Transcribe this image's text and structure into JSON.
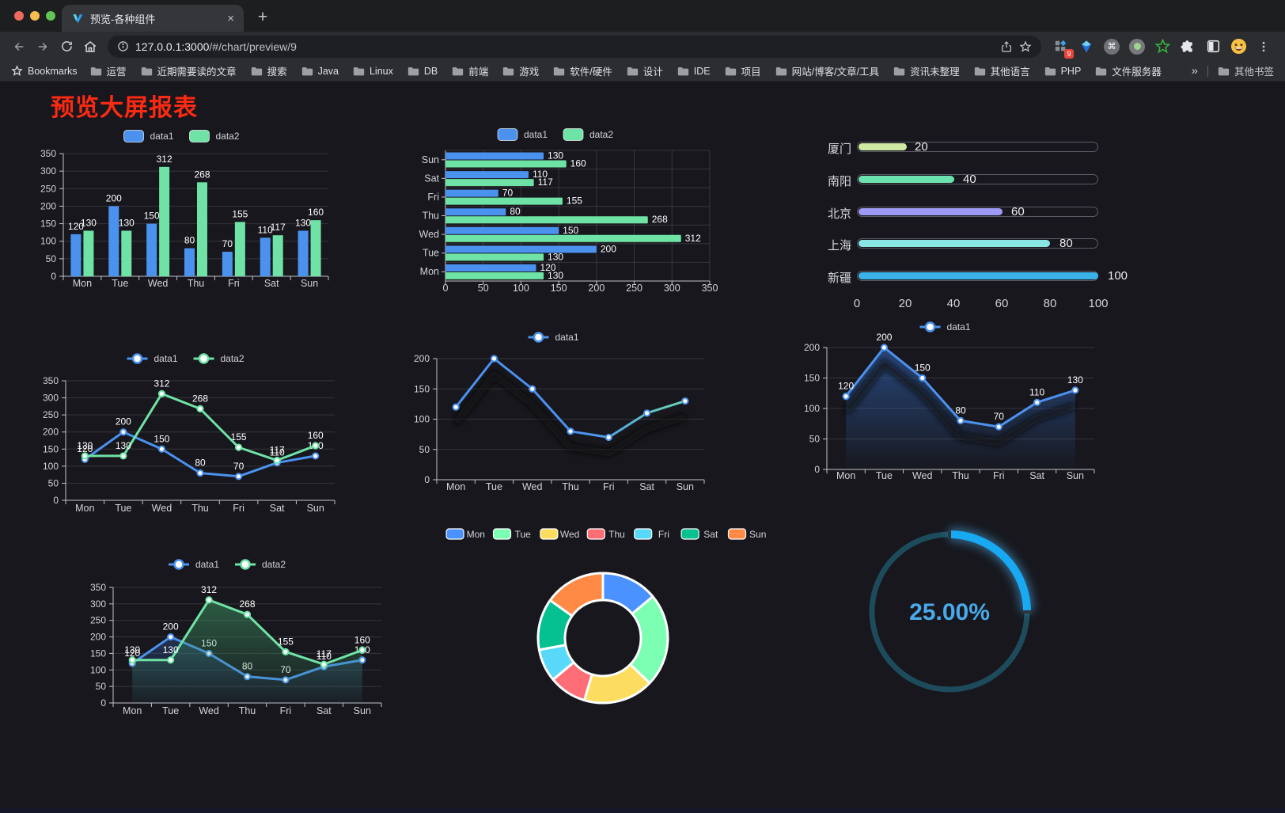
{
  "browser": {
    "tab_title": "预览-各种组件",
    "tab_close": "×",
    "new_tab_button": "+",
    "url_host": "127.0.0.1:3000",
    "url_path": "/#/chart/preview/9",
    "extension_badge": "9",
    "command_glyph": "⌘",
    "bookmarks_label": "Bookmarks",
    "bookmarks": [
      "运营",
      "近期需要读的文章",
      "搜索",
      "Java",
      "Linux",
      "DB",
      "前端",
      "游戏",
      "软件/硬件",
      "设计",
      "IDE",
      "项目",
      "网站/博客/文章/工具",
      "资讯未整理",
      "其他语言",
      "PHP",
      "文件服务器"
    ],
    "bookmarks_overflow": "»",
    "other_bookmarks": "其他书签"
  },
  "page": {
    "title": "预览大屏报表"
  },
  "chart_data": [
    {
      "id": "bar-grouped",
      "type": "bar",
      "categories": [
        "Mon",
        "Tue",
        "Wed",
        "Thu",
        "Fri",
        "Sat",
        "Sun"
      ],
      "series": [
        {
          "name": "data1",
          "color": "#4b92ef",
          "values": [
            120,
            200,
            150,
            80,
            70,
            110,
            130
          ]
        },
        {
          "name": "data2",
          "color": "#6fe3a5",
          "values": [
            130,
            130,
            312,
            268,
            155,
            117,
            160
          ]
        }
      ],
      "ylim": [
        0,
        350
      ],
      "ytick_step": 50,
      "legend_position": "top",
      "grid": true,
      "value_labels": true
    },
    {
      "id": "bar-horizontal",
      "type": "bar-horizontal",
      "categories": [
        "Mon",
        "Tue",
        "Wed",
        "Thu",
        "Fri",
        "Sat",
        "Sun"
      ],
      "series": [
        {
          "name": "data1",
          "color": "#4b92ef",
          "values": [
            120,
            200,
            150,
            80,
            70,
            110,
            130
          ]
        },
        {
          "name": "data2",
          "color": "#6fe3a5",
          "values": [
            130,
            130,
            312,
            268,
            155,
            117,
            160
          ]
        }
      ],
      "xlim": [
        0,
        350
      ],
      "xtick_step": 50,
      "legend_position": "top",
      "value_labels": true
    },
    {
      "id": "progress-list",
      "type": "progress-bars",
      "max": 100,
      "axis_ticks": [
        0,
        20,
        40,
        60,
        80,
        100
      ],
      "rows": [
        {
          "label": "厦门",
          "value": 20,
          "color": "#cfe9a2"
        },
        {
          "label": "南阳",
          "value": 40,
          "color": "#6ce2ae"
        },
        {
          "label": "北京",
          "value": 60,
          "color": "#9d99f5"
        },
        {
          "label": "上海",
          "value": 80,
          "color": "#8ae6e2"
        },
        {
          "label": "新疆",
          "value": 100,
          "color": "#3cb3e8"
        }
      ]
    },
    {
      "id": "line-dual",
      "type": "line",
      "categories": [
        "Mon",
        "Tue",
        "Wed",
        "Thu",
        "Fri",
        "Sat",
        "Sun"
      ],
      "series": [
        {
          "name": "data1",
          "color": "#4b92ef",
          "values": [
            120,
            200,
            150,
            80,
            70,
            110,
            130
          ]
        },
        {
          "name": "data2",
          "color": "#6fe3a5",
          "values": [
            130,
            130,
            312,
            268,
            155,
            117,
            160
          ]
        }
      ],
      "ylim": [
        0,
        350
      ],
      "ytick_step": 50,
      "value_labels": true,
      "markers": true,
      "legend_position": "top"
    },
    {
      "id": "line-gradient",
      "type": "line",
      "categories": [
        "Mon",
        "Tue",
        "Wed",
        "Thu",
        "Fri",
        "Sat",
        "Sun"
      ],
      "series": [
        {
          "name": "data1",
          "color": "#4b92ef",
          "gradient": [
            "#4b92ef",
            "#4b92ef",
            "#6fe3a5"
          ],
          "values": [
            120,
            200,
            150,
            80,
            70,
            110,
            130
          ]
        }
      ],
      "ylim": [
        0,
        200
      ],
      "ytick_step": 50,
      "value_labels": false,
      "markers": true,
      "shadow": true,
      "legend_position": "top"
    },
    {
      "id": "area-single",
      "type": "area",
      "categories": [
        "Mon",
        "Tue",
        "Wed",
        "Thu",
        "Fri",
        "Sat",
        "Sun"
      ],
      "series": [
        {
          "name": "data1",
          "color": "#4b92ef",
          "values": [
            120,
            200,
            150,
            80,
            70,
            110,
            130
          ],
          "area_fill": [
            "rgba(54,110,200,0.55)",
            "rgba(54,110,200,0.02)"
          ]
        }
      ],
      "ylim": [
        0,
        200
      ],
      "ytick_step": 50,
      "value_labels": true,
      "markers": true,
      "shadow": true,
      "legend_position": "top"
    },
    {
      "id": "area-dual",
      "type": "area",
      "categories": [
        "Mon",
        "Tue",
        "Wed",
        "Thu",
        "Fri",
        "Sat",
        "Sun"
      ],
      "series": [
        {
          "name": "data1",
          "color": "#4b92ef",
          "values": [
            120,
            200,
            150,
            80,
            70,
            110,
            130
          ],
          "area_fill": [
            "rgba(54,110,200,0.5)",
            "rgba(54,110,200,0.03)"
          ]
        },
        {
          "name": "data2",
          "color": "#6fe3a5",
          "values": [
            130,
            130,
            312,
            268,
            155,
            117,
            160
          ],
          "area_fill": [
            "rgba(62,150,100,0.6)",
            "rgba(62,150,100,0.04)"
          ]
        }
      ],
      "ylim": [
        0,
        350
      ],
      "ytick_step": 50,
      "value_labels": true,
      "markers": true,
      "legend_position": "top"
    },
    {
      "id": "donut",
      "type": "pie",
      "legend_position": "top",
      "items": [
        {
          "name": "Mon",
          "value": 120,
          "color": "#4992ff"
        },
        {
          "name": "Tue",
          "value": 200,
          "color": "#7cffb2"
        },
        {
          "name": "Wed",
          "value": 150,
          "color": "#fddd60"
        },
        {
          "name": "Thu",
          "value": 80,
          "color": "#ff6e76"
        },
        {
          "name": "Fri",
          "value": 70,
          "color": "#58d9f9"
        },
        {
          "name": "Sat",
          "value": 110,
          "color": "#05c091"
        },
        {
          "name": "Sun",
          "value": 130,
          "color": "#ff8a45"
        }
      ]
    },
    {
      "id": "gauge-ring",
      "type": "gauge",
      "value": 25,
      "label": "25.00%",
      "arc_color": "#17a9f2",
      "track_color": "#1d4b5c",
      "text_color": "#4aa9e9"
    }
  ]
}
